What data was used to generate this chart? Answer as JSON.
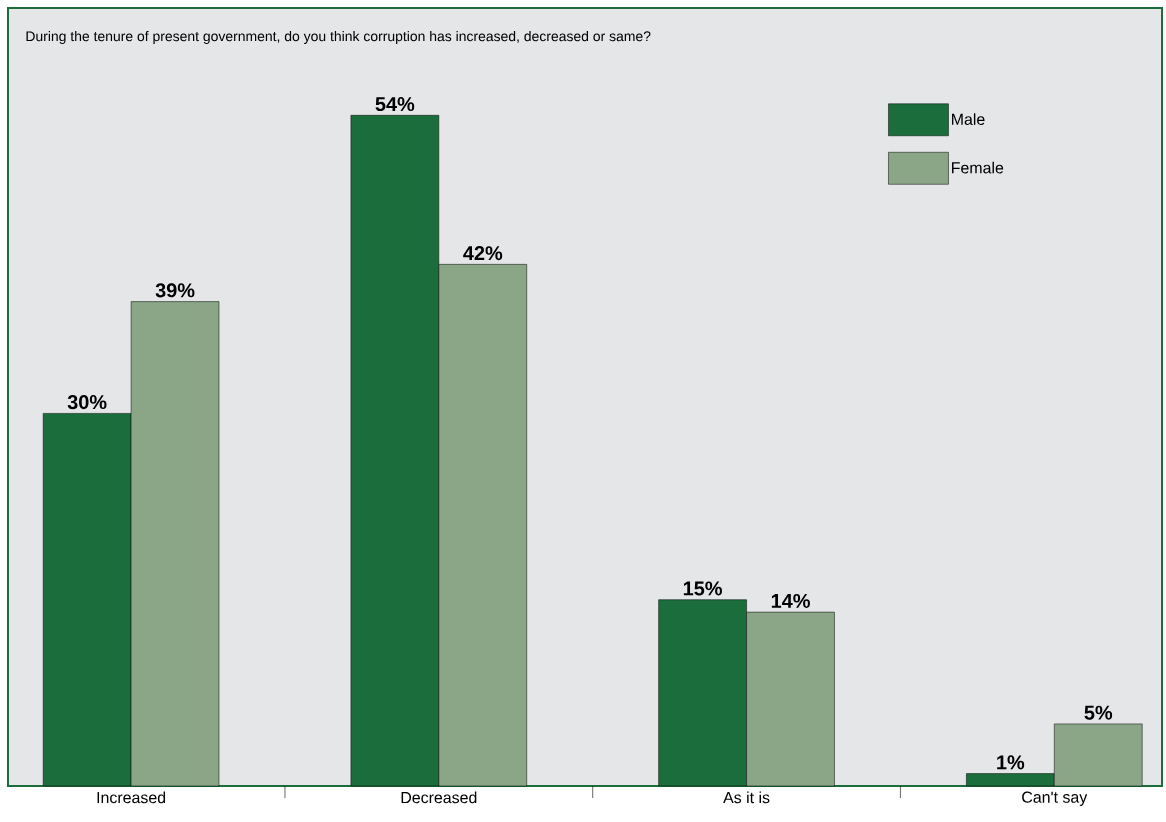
{
  "chart_data": {
    "type": "bar",
    "title": "During the tenure of present government, do you think corruption has increased, decreased or same?",
    "categories": [
      "Increased",
      "Decreased",
      "As it is",
      "Can't say"
    ],
    "series": [
      {
        "name": "Male",
        "color": "#1b6e3c",
        "values": [
          30,
          54,
          15,
          1
        ],
        "value_labels": [
          "30%",
          "54%",
          "15%",
          "1%"
        ]
      },
      {
        "name": "Female",
        "color": "#8aa686",
        "values": [
          39,
          42,
          14,
          5
        ],
        "value_labels": [
          "39%",
          "42%",
          "14%",
          "5%"
        ]
      }
    ],
    "legend": "top right"
  }
}
